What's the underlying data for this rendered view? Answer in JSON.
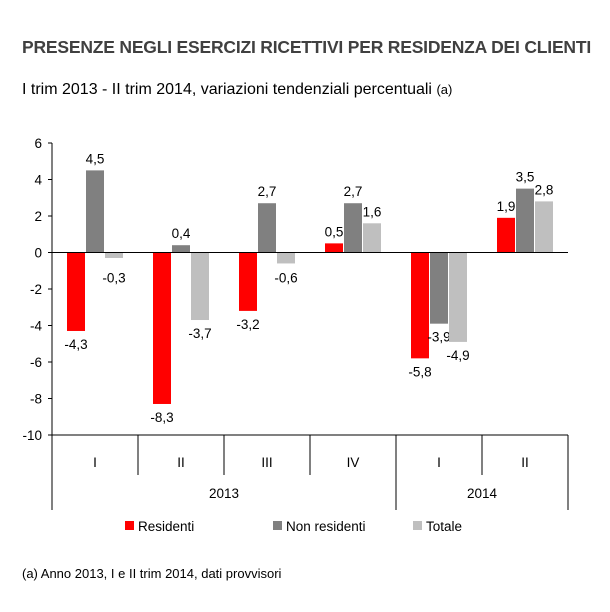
{
  "chart_data": {
    "type": "bar",
    "title": "PRESENZE NEGLI ESERCIZI RICETTIVI PER RESIDENZA DEI CLIENTI",
    "subtitle": "I trim 2013 - II trim 2014, variazioni tendenziali percentuali",
    "subtitle_note": "(a)",
    "categories": [
      "I",
      "II",
      "III",
      "IV",
      "I",
      "II"
    ],
    "years": [
      {
        "label": "2013",
        "span": 4
      },
      {
        "label": "2014",
        "span": 2
      }
    ],
    "series": [
      {
        "name": "Residenti",
        "color": "#ff0000",
        "values": [
          -4.3,
          -8.3,
          -3.2,
          0.5,
          -5.8,
          1.9
        ],
        "labels": [
          "-4,3",
          "-8,3",
          "-3,2",
          "0,5",
          "-5,8",
          "1,9"
        ]
      },
      {
        "name": "Non residenti",
        "color": "#808080",
        "values": [
          4.5,
          0.4,
          2.7,
          2.7,
          -3.9,
          3.5
        ],
        "labels": [
          "4,5",
          "0,4",
          "2,7",
          "2,7",
          "-3,9",
          "3,5"
        ]
      },
      {
        "name": "Totale",
        "color": "#bfbfbf",
        "values": [
          -0.3,
          -3.7,
          -0.6,
          1.6,
          -4.9,
          2.8
        ],
        "labels": [
          "-0,3",
          "-3,7",
          "-0,6",
          "1,6",
          "-4,9",
          "2,8"
        ]
      }
    ],
    "ylim": [
      -10,
      6
    ],
    "yticks": [
      6,
      4,
      2,
      0,
      -2,
      -4,
      -6,
      -8,
      -10
    ],
    "grid": false,
    "legend_placement": "bottom",
    "footnote": "(a) Anno 2013, I e II trim 2014, dati provvisori"
  }
}
